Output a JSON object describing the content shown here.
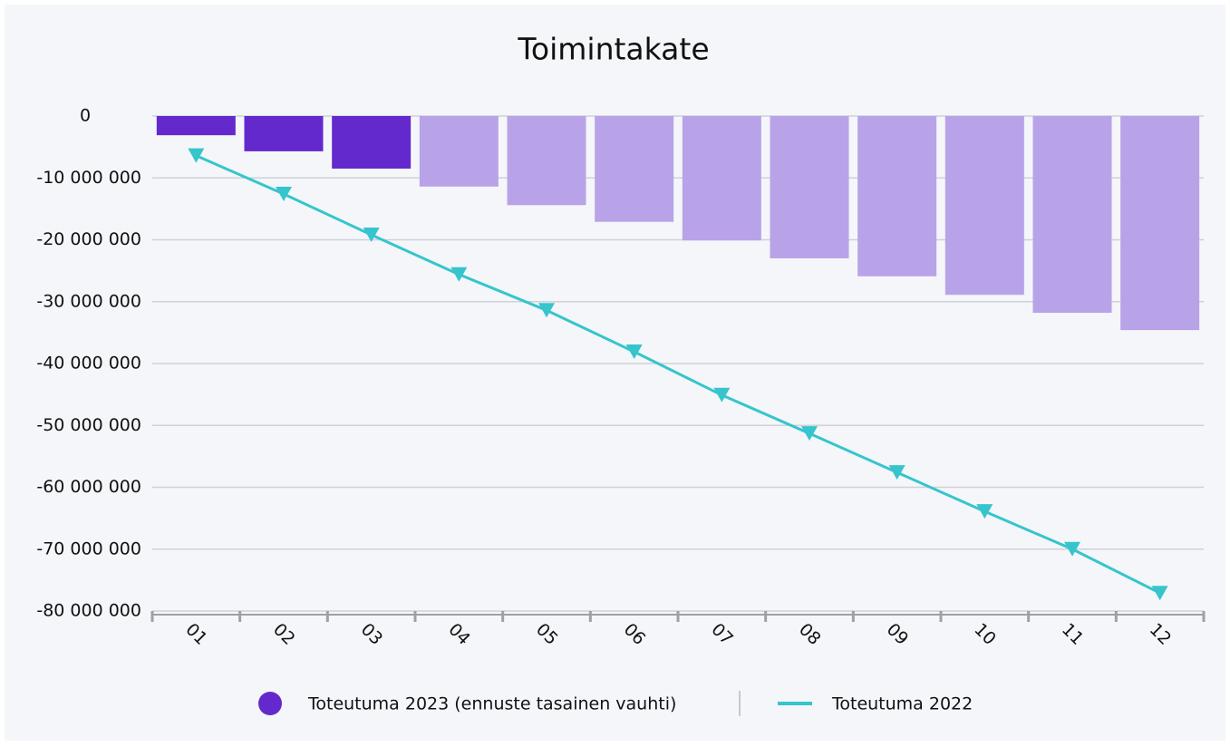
{
  "chart_data": {
    "type": "bar_line",
    "title": "Toimintakate",
    "categories": [
      "01",
      "02",
      "03",
      "04",
      "05",
      "06",
      "07",
      "08",
      "09",
      "10",
      "11",
      "12"
    ],
    "series": [
      {
        "name": "Toteutuma 2023 (ennuste tasainen vauhti)",
        "type": "bar",
        "color": "#6429cd",
        "colors": [
          "#6429cd",
          "#6429cd",
          "#6429cd",
          "#b8a3e8",
          "#b8a3e8",
          "#b8a3e8",
          "#b8a3e8",
          "#b8a3e8",
          "#b8a3e8",
          "#b8a3e8",
          "#b8a3e8",
          "#b8a3e8"
        ],
        "values": [
          -3100000,
          -5700000,
          -8500000,
          -11400000,
          -14400000,
          -17100000,
          -20100000,
          -23000000,
          -25900000,
          -28900000,
          -31800000,
          -34600000
        ]
      },
      {
        "name": "Toteutuma 2022",
        "type": "line",
        "color": "#36c5cc",
        "values": [
          -6400000,
          -12600000,
          -19200000,
          -25600000,
          -31400000,
          -38100000,
          -45100000,
          -51300000,
          -57600000,
          -63900000,
          -70000000,
          -77100000
        ]
      }
    ],
    "ylim": [
      -80000000,
      0
    ],
    "yticks": [
      0,
      {
        "value": -10000000,
        "label": "-10 000 000"
      },
      {
        "value": -20000000,
        "label": "-20 000 000"
      },
      {
        "value": -30000000,
        "label": "-30 000 000"
      },
      {
        "value": -40000000,
        "label": "-40 000 000"
      },
      {
        "value": -50000000,
        "label": "-50 000 000"
      },
      {
        "value": -60000000,
        "label": "-60 000 000"
      },
      {
        "value": -70000000,
        "label": "-70 000 000"
      },
      {
        "value": -80000000,
        "label": "-80 000 000"
      }
    ],
    "grid": true
  }
}
